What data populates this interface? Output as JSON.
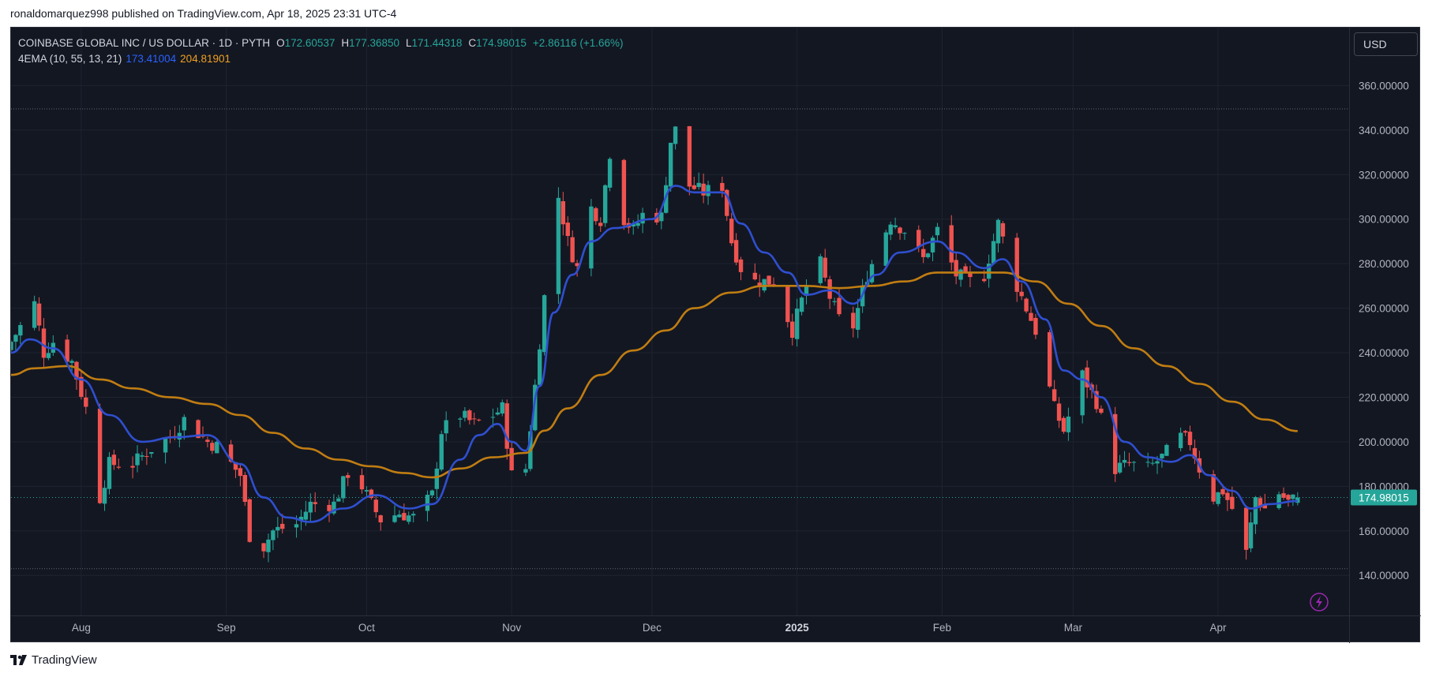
{
  "caption": "ronaldomarquez998 published on TradingView.com, Apr 18, 2025 23:31 UTC-4",
  "brand": "TradingView",
  "currency_button": "USD",
  "legend": {
    "symbol": "COINBASE GLOBAL INC / US DOLLAR · 1D · PYTH",
    "o_label": "O",
    "o": "172.60537",
    "h_label": "H",
    "h": "177.36850",
    "l_label": "L",
    "l": "171.44318",
    "c_label": "C",
    "c": "174.98015",
    "change": "+2.86116 (+1.66%)",
    "indicator": "4EMA (10, 55, 13, 21)",
    "ema_fast": "173.41004",
    "ema_slow": "204.81901"
  },
  "colors": {
    "up": "#26a69a",
    "down": "#ef5350",
    "ema_fast": "#2f4fd0",
    "ema_slow": "#c07d12",
    "background": "#131722",
    "grid": "#1f2330",
    "text": "#b2b5be"
  },
  "chart_data": {
    "type": "candlestick",
    "title": "COINBASE GLOBAL INC / US DOLLAR · 1D · PYTH",
    "y_ticks": [
      "140.00000",
      "160.00000",
      "180.00000",
      "200.00000",
      "220.00000",
      "240.00000",
      "260.00000",
      "280.00000",
      "300.00000",
      "320.00000",
      "340.00000",
      "360.00000"
    ],
    "y_tick_values": [
      140,
      160,
      180,
      200,
      220,
      240,
      260,
      280,
      300,
      320,
      340,
      360
    ],
    "ylim": [
      122,
      386
    ],
    "x_labels": [
      {
        "label": "Aug",
        "date": "2024-08-01",
        "bold": false
      },
      {
        "label": "Sep",
        "date": "2024-09-01",
        "bold": false
      },
      {
        "label": "Oct",
        "date": "2024-10-01",
        "bold": false
      },
      {
        "label": "Nov",
        "date": "2024-11-01",
        "bold": false
      },
      {
        "label": "Dec",
        "date": "2024-12-01",
        "bold": false
      },
      {
        "label": "2025",
        "date": "2025-01-01",
        "bold": true
      },
      {
        "label": "Feb",
        "date": "2025-02-01",
        "bold": false
      },
      {
        "label": "Mar",
        "date": "2025-03-01",
        "bold": false
      },
      {
        "label": "Apr",
        "date": "2025-04-01",
        "bold": false
      }
    ],
    "xlim": [
      "2024-07-17",
      "2025-04-29"
    ],
    "last_price_label": "174.98015",
    "last_price": 174.98,
    "range_high_line": 349.5,
    "range_low_line": 143,
    "ohlc_key_points": [
      [
        "2024-07-17",
        245
      ],
      [
        "2024-07-22",
        262
      ],
      [
        "2024-07-24",
        240
      ],
      [
        "2024-07-26",
        245
      ],
      [
        "2024-07-30",
        236
      ],
      [
        "2024-08-02",
        215
      ],
      [
        "2024-08-05",
        175
      ],
      [
        "2024-08-07",
        190
      ],
      [
        "2024-08-12",
        190
      ],
      [
        "2024-08-16",
        197
      ],
      [
        "2024-08-20",
        202
      ],
      [
        "2024-08-23",
        210
      ],
      [
        "2024-08-28",
        200
      ],
      [
        "2024-08-30",
        198
      ],
      [
        "2024-09-04",
        185
      ],
      [
        "2024-09-06",
        158
      ],
      [
        "2024-09-09",
        153
      ],
      [
        "2024-09-11",
        160
      ],
      [
        "2024-09-16",
        163
      ],
      [
        "2024-09-19",
        172
      ],
      [
        "2024-09-24",
        172
      ],
      [
        "2024-09-27",
        186
      ],
      [
        "2024-09-30",
        180
      ],
      [
        "2024-10-02",
        172
      ],
      [
        "2024-10-04",
        165
      ],
      [
        "2024-10-08",
        168
      ],
      [
        "2024-10-11",
        166
      ],
      [
        "2024-10-15",
        176
      ],
      [
        "2024-10-17",
        205
      ],
      [
        "2024-10-21",
        212
      ],
      [
        "2024-10-24",
        208
      ],
      [
        "2024-10-28",
        212
      ],
      [
        "2024-10-30",
        215
      ],
      [
        "2024-11-01",
        185
      ],
      [
        "2024-11-04",
        188
      ],
      [
        "2024-11-06",
        225
      ],
      [
        "2024-11-08",
        265
      ],
      [
        "2024-11-11",
        310
      ],
      [
        "2024-11-13",
        290
      ],
      [
        "2024-11-15",
        278
      ],
      [
        "2024-11-18",
        305
      ],
      [
        "2024-11-20",
        300
      ],
      [
        "2024-11-22",
        330
      ],
      [
        "2024-11-25",
        300
      ],
      [
        "2024-11-27",
        295
      ],
      [
        "2024-11-29",
        302
      ],
      [
        "2024-12-03",
        301
      ],
      [
        "2024-12-05",
        335
      ],
      [
        "2024-12-06",
        340
      ],
      [
        "2024-12-09",
        315
      ],
      [
        "2024-12-12",
        312
      ],
      [
        "2024-12-16",
        315
      ],
      [
        "2024-12-18",
        290
      ],
      [
        "2024-12-20",
        278
      ],
      [
        "2024-12-23",
        272
      ],
      [
        "2024-12-27",
        272
      ],
      [
        "2024-12-31",
        250
      ],
      [
        "2025-01-03",
        270
      ],
      [
        "2025-01-06",
        280
      ],
      [
        "2025-01-08",
        265
      ],
      [
        "2025-01-10",
        255
      ],
      [
        "2025-01-13",
        252
      ],
      [
        "2025-01-16",
        275
      ],
      [
        "2025-01-21",
        300
      ],
      [
        "2025-01-24",
        295
      ],
      [
        "2025-01-28",
        282
      ],
      [
        "2025-01-31",
        295
      ],
      [
        "2025-02-04",
        275
      ],
      [
        "2025-02-07",
        272
      ],
      [
        "2025-02-10",
        275
      ],
      [
        "2025-02-13",
        298
      ],
      [
        "2025-02-17",
        270
      ],
      [
        "2025-02-21",
        250
      ],
      [
        "2025-02-25",
        215
      ],
      [
        "2025-02-27",
        205
      ],
      [
        "2025-03-03",
        230
      ],
      [
        "2025-03-06",
        218
      ],
      [
        "2025-03-10",
        188
      ],
      [
        "2025-03-13",
        190
      ],
      [
        "2025-03-17",
        188
      ],
      [
        "2025-03-20",
        193
      ],
      [
        "2025-03-24",
        202
      ],
      [
        "2025-03-26",
        200
      ],
      [
        "2025-03-28",
        188
      ],
      [
        "2025-03-31",
        175
      ],
      [
        "2025-04-02",
        178
      ],
      [
        "2025-04-04",
        170
      ],
      [
        "2025-04-07",
        150
      ],
      [
        "2025-04-09",
        175
      ],
      [
        "2025-04-11",
        170
      ],
      [
        "2025-04-14",
        177
      ],
      [
        "2025-04-16",
        173
      ],
      [
        "2025-04-18",
        174.98
      ]
    ],
    "ema_fast_points": [
      [
        "2024-07-17",
        240
      ],
      [
        "2024-07-21",
        246
      ],
      [
        "2024-07-26",
        242
      ],
      [
        "2024-08-01",
        228
      ],
      [
        "2024-08-07",
        212
      ],
      [
        "2024-08-14",
        200
      ],
      [
        "2024-08-21",
        202
      ],
      [
        "2024-08-28",
        203
      ],
      [
        "2024-09-04",
        190
      ],
      [
        "2024-09-09",
        175
      ],
      [
        "2024-09-14",
        166
      ],
      [
        "2024-09-19",
        164
      ],
      [
        "2024-09-26",
        170
      ],
      [
        "2024-10-03",
        176
      ],
      [
        "2024-10-10",
        170
      ],
      [
        "2024-10-15",
        172
      ],
      [
        "2024-10-21",
        192
      ],
      [
        "2024-10-25",
        203
      ],
      [
        "2024-10-29",
        208
      ],
      [
        "2024-11-01",
        200
      ],
      [
        "2024-11-04",
        196
      ],
      [
        "2024-11-07",
        225
      ],
      [
        "2024-11-10",
        258
      ],
      [
        "2024-11-14",
        275
      ],
      [
        "2024-11-18",
        290
      ],
      [
        "2024-11-23",
        296
      ],
      [
        "2024-12-01",
        300
      ],
      [
        "2024-12-06",
        315
      ],
      [
        "2024-12-10",
        312
      ],
      [
        "2024-12-16",
        312
      ],
      [
        "2024-12-20",
        298
      ],
      [
        "2024-12-25",
        285
      ],
      [
        "2024-12-30",
        276
      ],
      [
        "2025-01-03",
        266
      ],
      [
        "2025-01-08",
        268
      ],
      [
        "2025-01-13",
        262
      ],
      [
        "2025-01-18",
        275
      ],
      [
        "2025-01-23",
        285
      ],
      [
        "2025-01-31",
        290
      ],
      [
        "2025-02-04",
        285
      ],
      [
        "2025-02-10",
        278
      ],
      [
        "2025-02-14",
        282
      ],
      [
        "2025-02-18",
        272
      ],
      [
        "2025-02-23",
        255
      ],
      [
        "2025-02-27",
        232
      ],
      [
        "2025-03-03",
        228
      ],
      [
        "2025-03-07",
        220
      ],
      [
        "2025-03-12",
        200
      ],
      [
        "2025-03-17",
        193
      ],
      [
        "2025-03-22",
        191
      ],
      [
        "2025-03-26",
        194
      ],
      [
        "2025-03-30",
        185
      ],
      [
        "2025-04-04",
        178
      ],
      [
        "2025-04-08",
        170
      ],
      [
        "2025-04-12",
        172
      ],
      [
        "2025-04-18",
        173.41
      ]
    ],
    "ema_slow_points": [
      [
        "2024-07-17",
        230
      ],
      [
        "2024-07-22",
        233
      ],
      [
        "2024-07-29",
        234
      ],
      [
        "2024-08-05",
        228
      ],
      [
        "2024-08-12",
        224
      ],
      [
        "2024-08-20",
        220
      ],
      [
        "2024-08-28",
        217
      ],
      [
        "2024-09-04",
        212
      ],
      [
        "2024-09-11",
        204
      ],
      [
        "2024-09-18",
        197
      ],
      [
        "2024-09-25",
        192
      ],
      [
        "2024-10-02",
        189
      ],
      [
        "2024-10-09",
        186
      ],
      [
        "2024-10-15",
        184
      ],
      [
        "2024-10-21",
        188
      ],
      [
        "2024-10-28",
        193
      ],
      [
        "2024-11-04",
        195
      ],
      [
        "2024-11-08",
        205
      ],
      [
        "2024-11-13",
        215
      ],
      [
        "2024-11-20",
        230
      ],
      [
        "2024-11-27",
        241
      ],
      [
        "2024-12-04",
        250
      ],
      [
        "2024-12-10",
        260
      ],
      [
        "2024-12-18",
        267
      ],
      [
        "2024-12-25",
        270
      ],
      [
        "2025-01-03",
        270
      ],
      [
        "2025-01-10",
        269
      ],
      [
        "2025-01-17",
        270
      ],
      [
        "2025-01-24",
        272
      ],
      [
        "2025-01-31",
        276
      ],
      [
        "2025-02-07",
        276
      ],
      [
        "2025-02-14",
        276
      ],
      [
        "2025-02-21",
        272
      ],
      [
        "2025-02-28",
        262
      ],
      [
        "2025-03-07",
        252
      ],
      [
        "2025-03-14",
        242
      ],
      [
        "2025-03-21",
        234
      ],
      [
        "2025-03-28",
        226
      ],
      [
        "2025-04-04",
        218
      ],
      [
        "2025-04-11",
        210
      ],
      [
        "2025-04-18",
        204.82
      ]
    ]
  }
}
